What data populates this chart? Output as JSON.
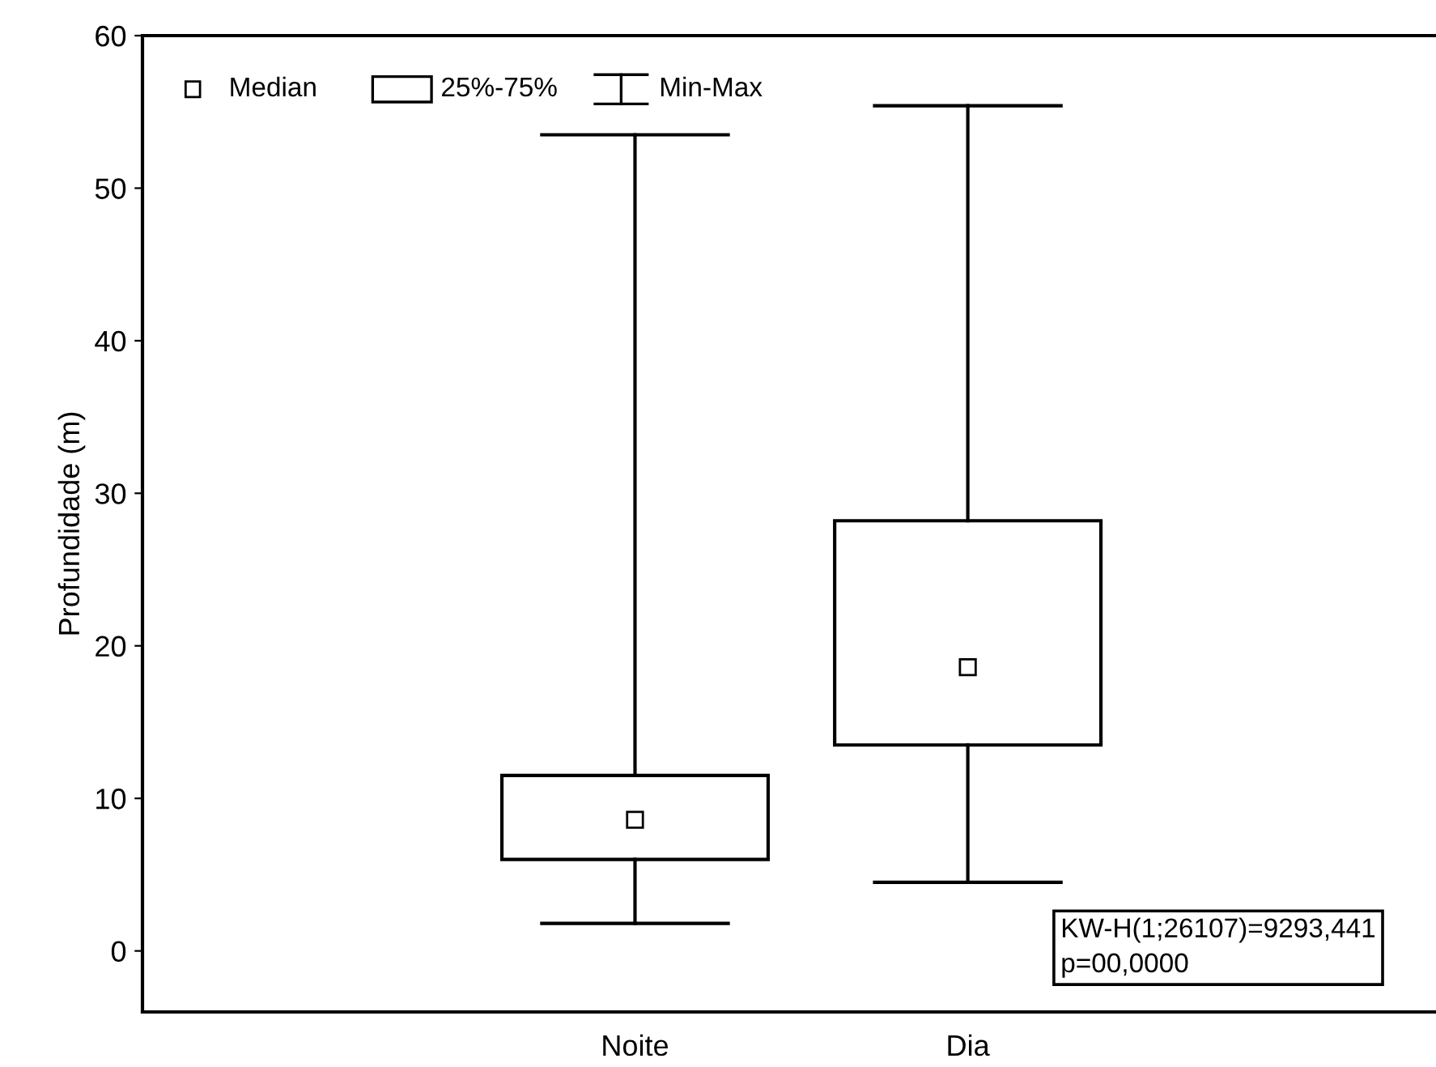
{
  "chart_data": {
    "type": "box",
    "ylabel": "Profundidade (m)",
    "categories": [
      "Noite",
      "Dia"
    ],
    "boxes": [
      {
        "low": 1.8,
        "q1": 6.0,
        "median": 8.6,
        "q3": 11.5,
        "high": 53.5
      },
      {
        "low": 4.5,
        "q1": 13.5,
        "median": 18.6,
        "q3": 28.2,
        "high": 55.4
      }
    ],
    "ylim": [
      -4,
      60
    ],
    "yticks": [
      0,
      10,
      20,
      30,
      40,
      50,
      60
    ],
    "marker": "square",
    "grid": false,
    "annotations": [
      "Median",
      "25%-75%",
      "Min-Max",
      "KW-H(1;26107)=9293,441\np=00,0000"
    ]
  }
}
